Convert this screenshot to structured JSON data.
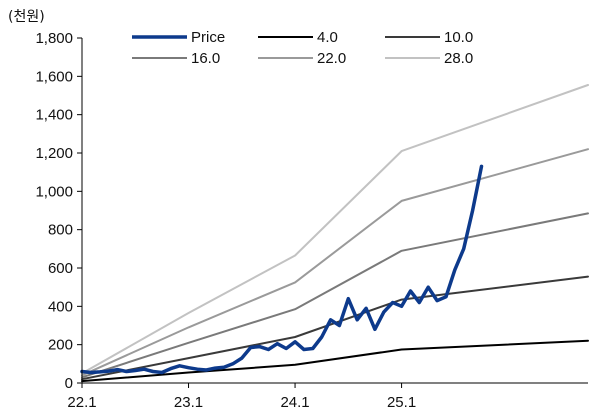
{
  "chart_data": {
    "type": "line",
    "unit_label": "(천원)",
    "xlabel": "",
    "ylabel": "",
    "ylim": [
      0,
      1800
    ],
    "yticks": [
      0,
      200,
      400,
      600,
      800,
      1000,
      1200,
      1400,
      1600,
      1800
    ],
    "ytick_labels": [
      "0",
      "200",
      "400",
      "600",
      "800",
      "1,000",
      "1,200",
      "1,400",
      "1,600",
      "1,800"
    ],
    "xlim": [
      "2022-01",
      "2026-10"
    ],
    "xticks": [
      "2022-01",
      "2023-01",
      "2024-01",
      "2025-01"
    ],
    "xtick_labels": [
      "22.1",
      "23.1",
      "24.1",
      "25.1"
    ],
    "legend_position": "top",
    "grid": false,
    "series": [
      {
        "name": "Price",
        "color": "#0d3a8c",
        "points": [
          [
            "2022-01",
            60
          ],
          [
            "2022-02",
            55
          ],
          [
            "2022-03",
            58
          ],
          [
            "2022-04",
            62
          ],
          [
            "2022-05",
            70
          ],
          [
            "2022-06",
            60
          ],
          [
            "2022-07",
            65
          ],
          [
            "2022-08",
            72
          ],
          [
            "2022-09",
            60
          ],
          [
            "2022-10",
            55
          ],
          [
            "2022-11",
            75
          ],
          [
            "2022-12",
            90
          ],
          [
            "2023-01",
            80
          ],
          [
            "2023-02",
            72
          ],
          [
            "2023-03",
            68
          ],
          [
            "2023-04",
            78
          ],
          [
            "2023-05",
            82
          ],
          [
            "2023-06",
            100
          ],
          [
            "2023-07",
            130
          ],
          [
            "2023-08",
            185
          ],
          [
            "2023-09",
            190
          ],
          [
            "2023-10",
            175
          ],
          [
            "2023-11",
            205
          ],
          [
            "2023-12",
            180
          ],
          [
            "2024-01",
            215
          ],
          [
            "2024-02",
            175
          ],
          [
            "2024-03",
            180
          ],
          [
            "2024-04",
            240
          ],
          [
            "2024-05",
            330
          ],
          [
            "2024-06",
            300
          ],
          [
            "2024-07",
            440
          ],
          [
            "2024-08",
            330
          ],
          [
            "2024-09",
            390
          ],
          [
            "2024-10",
            280
          ],
          [
            "2024-11",
            370
          ],
          [
            "2024-12",
            420
          ],
          [
            "2025-01",
            400
          ],
          [
            "2025-02",
            480
          ],
          [
            "2025-03",
            420
          ],
          [
            "2025-04",
            500
          ],
          [
            "2025-05",
            430
          ],
          [
            "2025-06",
            450
          ],
          [
            "2025-07",
            590
          ],
          [
            "2025-08",
            700
          ],
          [
            "2025-09",
            900
          ],
          [
            "2025-10",
            1130
          ]
        ]
      },
      {
        "name": "4.0",
        "color": "#000000",
        "points": [
          [
            "2022-01",
            10
          ],
          [
            "2023-01",
            55
          ],
          [
            "2024-01",
            95
          ],
          [
            "2025-01",
            175
          ],
          [
            "2026-10",
            220
          ]
        ]
      },
      {
        "name": "10.0",
        "color": "#3a3a3a",
        "points": [
          [
            "2022-01",
            20
          ],
          [
            "2023-01",
            130
          ],
          [
            "2024-01",
            240
          ],
          [
            "2025-01",
            435
          ],
          [
            "2026-10",
            555
          ]
        ]
      },
      {
        "name": "16.0",
        "color": "#7a7a7a",
        "points": [
          [
            "2022-01",
            30
          ],
          [
            "2023-01",
            210
          ],
          [
            "2024-01",
            385
          ],
          [
            "2025-01",
            690
          ],
          [
            "2026-10",
            885
          ]
        ]
      },
      {
        "name": "22.0",
        "color": "#9a9a9a",
        "points": [
          [
            "2022-01",
            40
          ],
          [
            "2023-01",
            290
          ],
          [
            "2024-01",
            525
          ],
          [
            "2025-01",
            950
          ],
          [
            "2026-10",
            1220
          ]
        ]
      },
      {
        "name": "28.0",
        "color": "#c2c2c2",
        "points": [
          [
            "2022-01",
            50
          ],
          [
            "2023-01",
            365
          ],
          [
            "2024-01",
            665
          ],
          [
            "2025-01",
            1210
          ],
          [
            "2026-10",
            1555
          ]
        ]
      }
    ]
  }
}
